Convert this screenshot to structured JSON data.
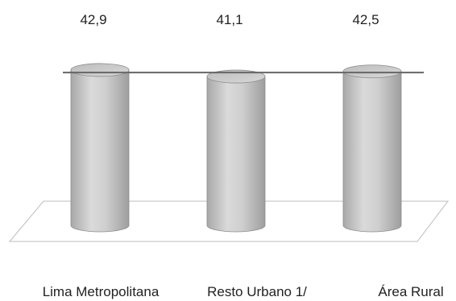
{
  "chart_data": {
    "type": "bar",
    "bar_shape": "cylinder",
    "categories": [
      "Lima Metropolitana",
      "Resto Urbano 1/",
      "Área Rural"
    ],
    "values": [
      42.9,
      41.1,
      42.5
    ],
    "value_labels": [
      "42,9",
      "41,1",
      "42,5"
    ],
    "reference_line": 42.2,
    "ylim": [
      0,
      50
    ],
    "grid": false,
    "legend": "none",
    "colors": {
      "bar_fill": "#c7c7c7",
      "bar_highlight": "#e6e6e6",
      "bar_shadow": "#9a9a9a",
      "bar_outline": "#8c8c8c",
      "reference_line": "#666666",
      "floor": "#bdbdbd"
    }
  }
}
